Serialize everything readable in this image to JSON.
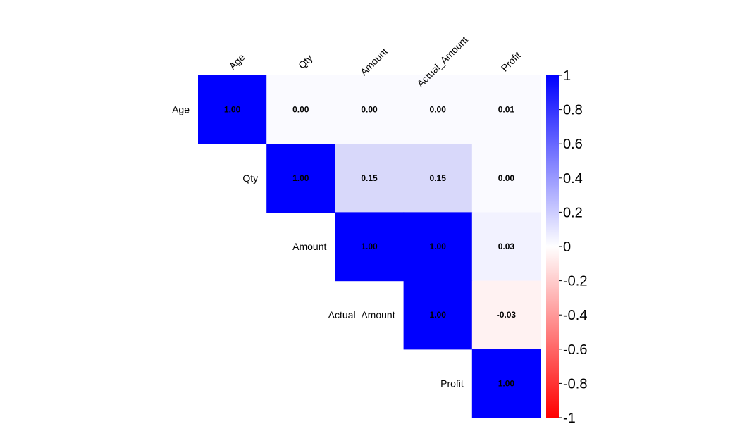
{
  "chart_data": {
    "type": "heatmap",
    "layout": "upper-triangle",
    "variables": [
      "Age",
      "Qty",
      "Amount",
      "Actual_Amount",
      "Profit"
    ],
    "matrix": [
      [
        1.0,
        0.0,
        0.0,
        0.0,
        0.01
      ],
      [
        null,
        1.0,
        0.15,
        0.15,
        0.0
      ],
      [
        null,
        null,
        1.0,
        1.0,
        0.03
      ],
      [
        null,
        null,
        null,
        1.0,
        -0.03
      ],
      [
        null,
        null,
        null,
        null,
        1.0
      ]
    ],
    "value_format": "2 decimals",
    "colorbar": {
      "min": -1,
      "max": 1,
      "ticks": [
        1,
        0.8,
        0.6,
        0.4,
        0.2,
        0,
        -0.2,
        -0.4,
        -0.6,
        -0.8,
        -1
      ],
      "tick_labels": [
        "1",
        "0.8",
        "0.6",
        "0.4",
        "0.2",
        "0",
        "-0.2",
        "-0.4",
        "-0.6",
        "-0.8",
        "-1"
      ],
      "colors": {
        "negative": "#ff0000",
        "neutral": "#ffffff",
        "positive": "#0000ff"
      }
    },
    "grid": false
  }
}
